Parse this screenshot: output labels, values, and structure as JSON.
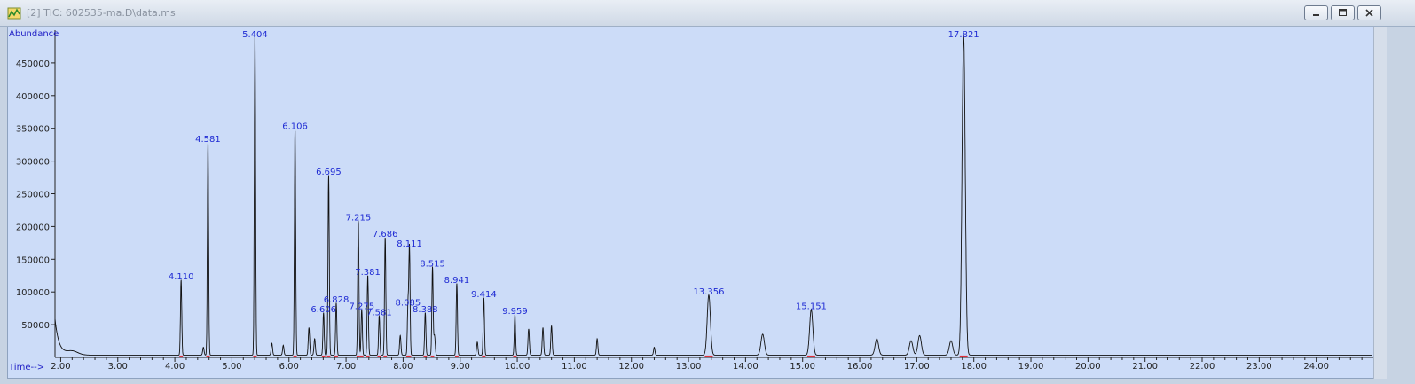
{
  "window": {
    "title": "[2] TIC: 602535-ma.D\\data.ms",
    "icons": [
      "chart-app-icon",
      "minimize-icon",
      "maximize-icon",
      "close-icon"
    ]
  },
  "chart_data": {
    "type": "line",
    "ylabel": "Abundance",
    "xlabel": "Time-->",
    "xlim": [
      1.9,
      25.0
    ],
    "ylim": [
      0,
      500000
    ],
    "x_ticks": [
      "2.00",
      "3.00",
      "4.00",
      "5.00",
      "6.00",
      "7.00",
      "8.00",
      "9.00",
      "10.00",
      "11.00",
      "12.00",
      "13.00",
      "14.00",
      "15.00",
      "16.00",
      "17.00",
      "18.00",
      "19.00",
      "20.00",
      "21.00",
      "22.00",
      "23.00",
      "24.00"
    ],
    "y_ticks": [
      "50000",
      "100000",
      "150000",
      "200000",
      "250000",
      "300000",
      "350000",
      "400000",
      "450000"
    ],
    "peaks": [
      {
        "rt": 4.11,
        "label": "4.110",
        "height": 115000
      },
      {
        "rt": 4.581,
        "label": "4.581",
        "height": 325000
      },
      {
        "rt": 5.404,
        "label": "5.404",
        "height": 490000
      },
      {
        "rt": 6.106,
        "label": "6.106",
        "height": 345000
      },
      {
        "rt": 6.606,
        "label": "6.606",
        "height": 65000
      },
      {
        "rt": 6.695,
        "label": "6.695",
        "height": 275000
      },
      {
        "rt": 6.828,
        "label": "6.828",
        "height": 80000
      },
      {
        "rt": 7.215,
        "label": "7.215",
        "height": 205000
      },
      {
        "rt": 7.275,
        "label": "7.275",
        "height": 70000
      },
      {
        "rt": 7.381,
        "label": "7.381",
        "height": 122000
      },
      {
        "rt": 7.581,
        "label": "7.581",
        "height": 60000
      },
      {
        "rt": 7.686,
        "label": "7.686",
        "height": 180000
      },
      {
        "rt": 8.085,
        "label": "8.085",
        "height": 75000
      },
      {
        "rt": 8.111,
        "label": "8.111",
        "height": 165000
      },
      {
        "rt": 8.388,
        "label": "8.388",
        "height": 65000
      },
      {
        "rt": 8.515,
        "label": "8.515",
        "height": 135000
      },
      {
        "rt": 8.941,
        "label": "8.941",
        "height": 110000
      },
      {
        "rt": 9.414,
        "label": "9.414",
        "height": 88000
      },
      {
        "rt": 9.959,
        "label": "9.959",
        "height": 62000
      },
      {
        "rt": 13.356,
        "label": "13.356",
        "height": 92000
      },
      {
        "rt": 15.151,
        "label": "15.151",
        "height": 70000
      },
      {
        "rt": 17.821,
        "label": "17.821",
        "height": 490000
      }
    ],
    "minor_peaks": [
      {
        "rt": 4.5,
        "height": 12000
      },
      {
        "rt": 5.7,
        "height": 18000
      },
      {
        "rt": 5.9,
        "height": 15000
      },
      {
        "rt": 6.35,
        "height": 42000
      },
      {
        "rt": 6.45,
        "height": 25000
      },
      {
        "rt": 7.95,
        "height": 30000
      },
      {
        "rt": 8.55,
        "height": 30000
      },
      {
        "rt": 9.3,
        "height": 20000
      },
      {
        "rt": 10.2,
        "height": 40000
      },
      {
        "rt": 10.45,
        "height": 42000
      },
      {
        "rt": 10.6,
        "height": 45000
      },
      {
        "rt": 11.4,
        "height": 25000
      },
      {
        "rt": 12.4,
        "height": 12000
      },
      {
        "rt": 14.3,
        "height": 32000
      },
      {
        "rt": 16.3,
        "height": 25000
      },
      {
        "rt": 16.9,
        "height": 22000
      },
      {
        "rt": 17.05,
        "height": 30000
      },
      {
        "rt": 17.6,
        "height": 22000
      }
    ]
  }
}
